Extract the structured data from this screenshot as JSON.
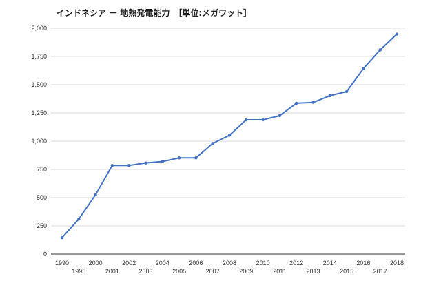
{
  "chart_data": {
    "type": "line",
    "title": "インドネシア ー 地熱発電能力　［単位:メガワット］",
    "xlabel": "",
    "ylabel": "",
    "ylim": [
      0,
      2000
    ],
    "yticks": [
      0,
      250,
      500,
      750,
      1000,
      1250,
      1500,
      1750,
      2000
    ],
    "ytick_labels": [
      "0",
      "250",
      "500",
      "750",
      "1,000",
      "1,250",
      "1,500",
      "1,750",
      "2,000"
    ],
    "grid": true,
    "legend": "none",
    "categories": [
      "1990",
      "1995",
      "2000",
      "2001",
      "2002",
      "2003",
      "2004",
      "2005",
      "2006",
      "2007",
      "2008",
      "2009",
      "2010",
      "2011",
      "2012",
      "2013",
      "2014",
      "2015",
      "2016",
      "2017",
      "2018"
    ],
    "series": [
      {
        "color": "#4472c4",
        "values": [
          145,
          310,
          525,
          785,
          785,
          807,
          820,
          852,
          852,
          980,
          1052,
          1189,
          1189,
          1226,
          1336,
          1343,
          1403,
          1439,
          1643,
          1808,
          1948
        ]
      }
    ]
  }
}
